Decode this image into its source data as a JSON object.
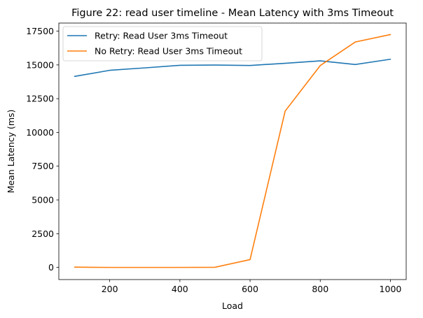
{
  "chart_data": {
    "type": "line",
    "title": "Figure 22: read user timeline - Mean Latency with 3ms Timeout",
    "xlabel": "Load",
    "ylabel": "Mean Latency (ms)",
    "xlim": [
      55,
      1045
    ],
    "ylim": [
      -900,
      18100
    ],
    "xticks": [
      200,
      400,
      600,
      800,
      1000
    ],
    "yticks": [
      0,
      2500,
      5000,
      7500,
      10000,
      12500,
      15000,
      17500
    ],
    "x": [
      100,
      200,
      300,
      400,
      500,
      600,
      700,
      800,
      900,
      1000
    ],
    "grid": false,
    "legend_position": "upper-left",
    "series": [
      {
        "name": "Retry: Read User 3ms Timeout",
        "color": "#1f77b4",
        "values": [
          14150,
          14600,
          14780,
          14970,
          14990,
          14960,
          15120,
          15300,
          15030,
          15420
        ]
      },
      {
        "name": "No Retry: Read User 3ms Timeout",
        "color": "#ff7f0e",
        "values": [
          20,
          0,
          0,
          0,
          10,
          580,
          11580,
          14950,
          16700,
          17250
        ]
      }
    ]
  }
}
